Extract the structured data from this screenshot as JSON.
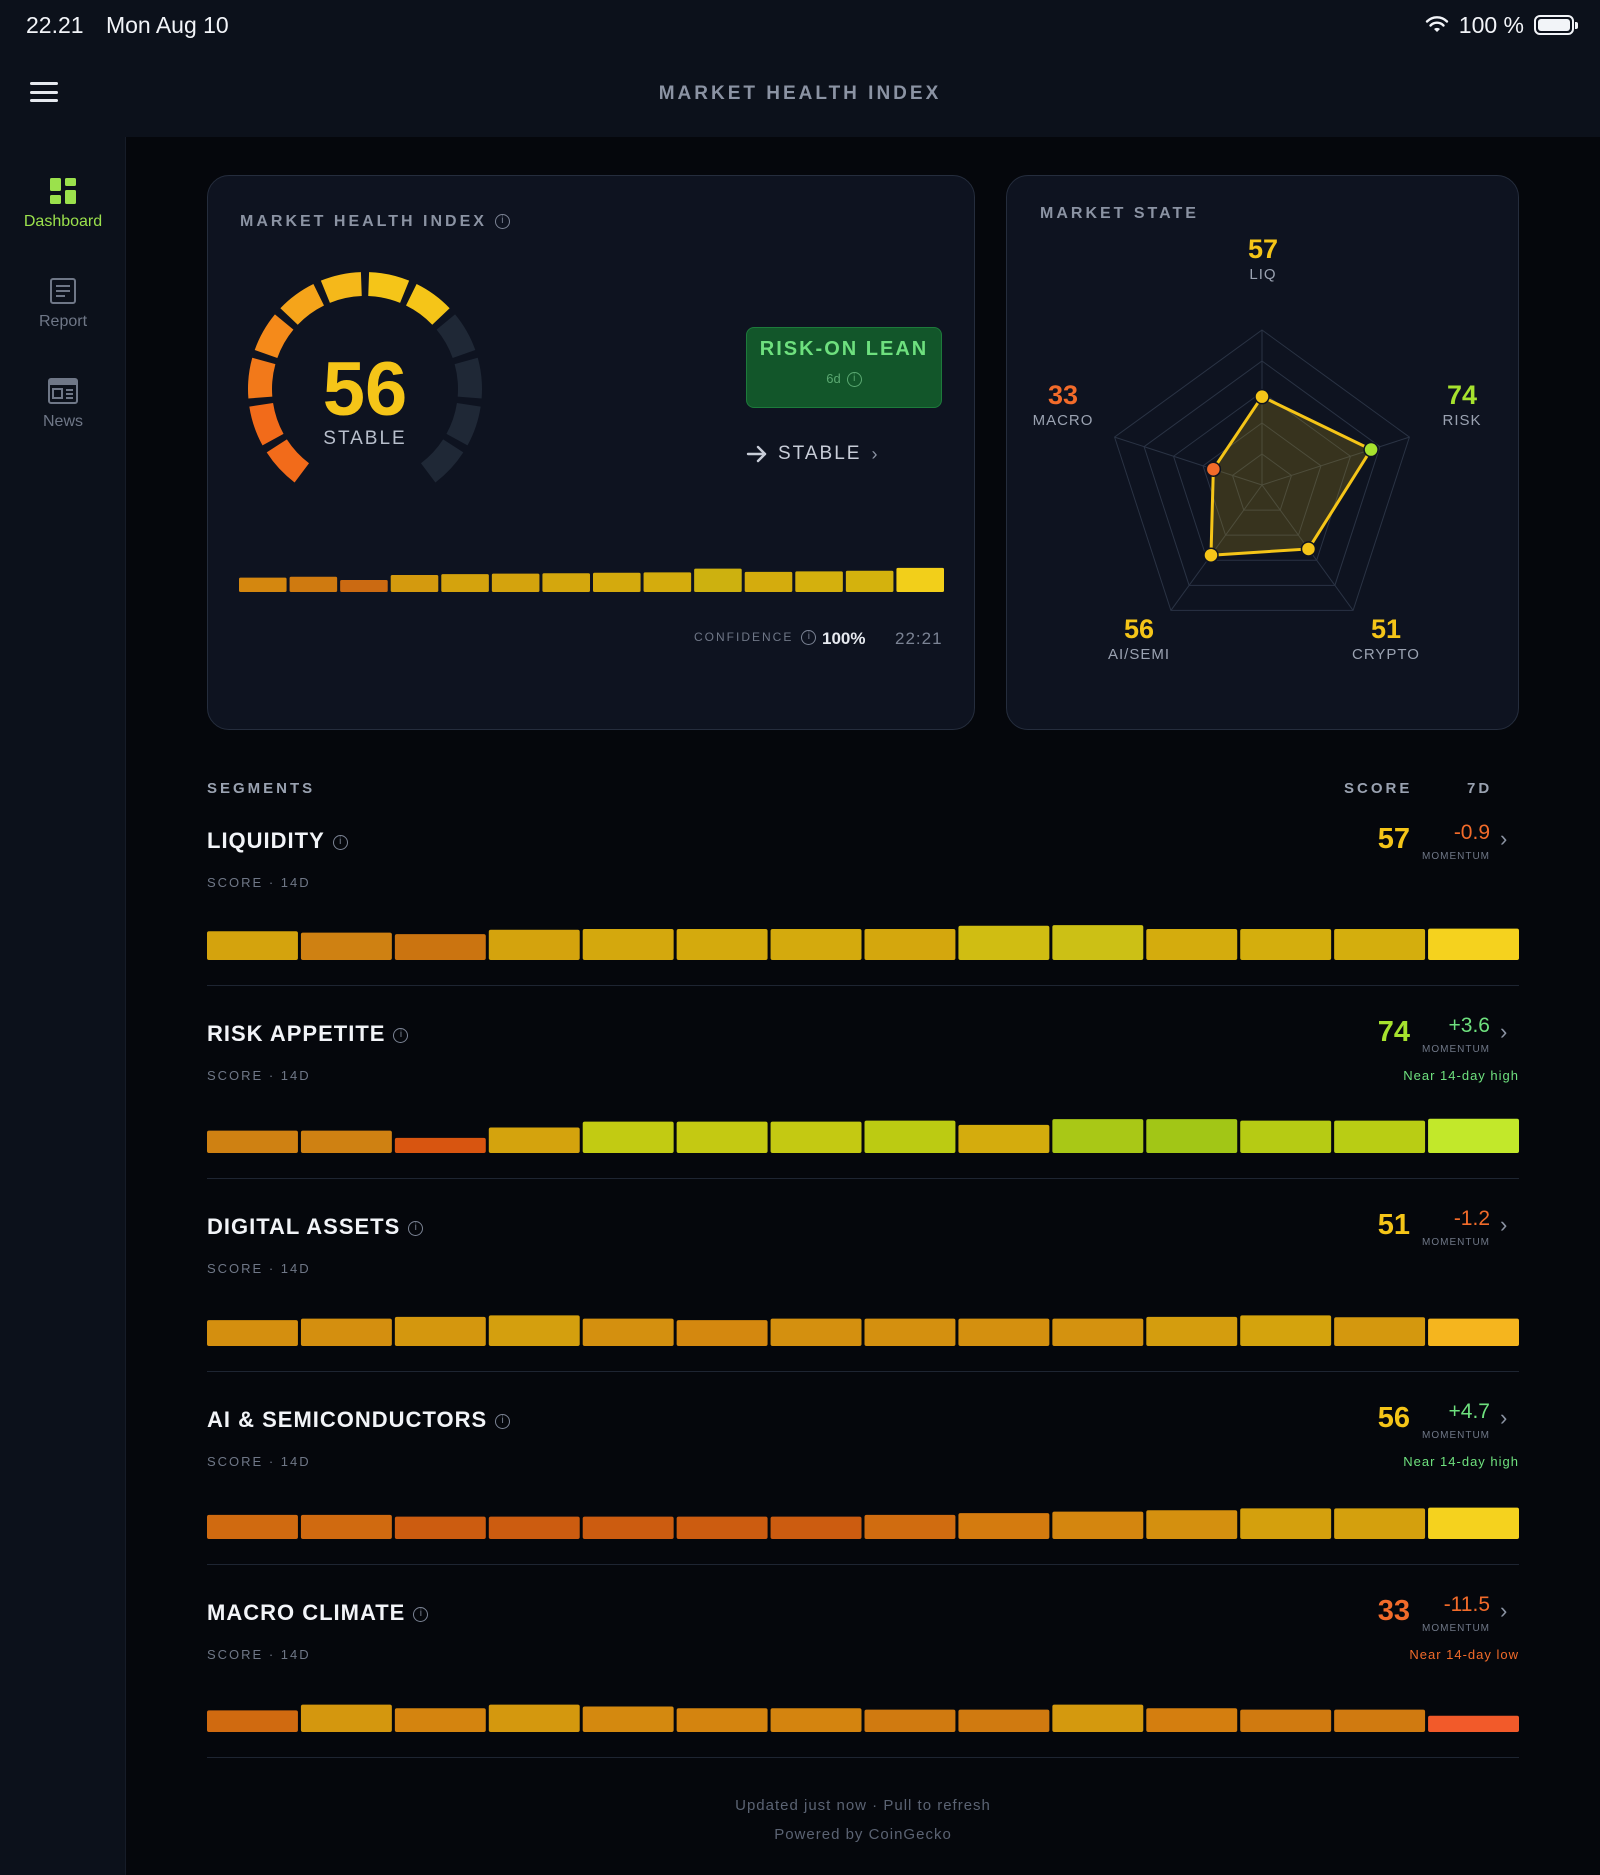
{
  "status": {
    "time": "22.21",
    "date": "Mon Aug 10",
    "battery": "100 %"
  },
  "header": {
    "title": "MARKET HEALTH INDEX"
  },
  "sidebar": {
    "items": [
      {
        "label": "Dashboard",
        "icon": "dashboard-icon",
        "active": true
      },
      {
        "label": "Report",
        "icon": "report-icon",
        "active": false
      },
      {
        "label": "News",
        "icon": "news-icon",
        "active": false
      }
    ]
  },
  "index_card": {
    "label": "MARKET HEALTH INDEX",
    "score": "56",
    "state": "STABLE",
    "gauge_fraction": 0.56,
    "badge": {
      "title": "RISK-ON LEAN",
      "sub": "6d"
    },
    "trend_label": "STABLE",
    "confidence_label": "CONFIDENCE",
    "confidence_value": "100%",
    "time": "22:21",
    "history": [
      0.56,
      0.6,
      0.45,
      0.68,
      0.72,
      0.74,
      0.76,
      0.78,
      0.8,
      0.97,
      0.82,
      0.84,
      0.87,
      1.0
    ],
    "history_colors": [
      "#d4870f",
      "#cf7a10",
      "#cb6a12",
      "#d49a0e",
      "#d4a30d",
      "#d4a30d",
      "#d4a70d",
      "#d4aa0d",
      "#d4ac0d",
      "#cdb10f",
      "#d4ac0d",
      "#d4b00d",
      "#d4b20d",
      "#f2cf1a"
    ]
  },
  "market_state": {
    "label": "MARKET STATE",
    "axes": [
      {
        "key": "LIQ",
        "value": 57,
        "color": "#f5c518"
      },
      {
        "key": "RISK",
        "value": 74,
        "color": "#a6e22e"
      },
      {
        "key": "CRYPTO",
        "value": 51,
        "color": "#f5c518"
      },
      {
        "key": "AI/SEMI",
        "value": 56,
        "color": "#f5c518"
      },
      {
        "key": "MACRO",
        "value": 33,
        "color": "#f26b2a"
      }
    ]
  },
  "segments_header": {
    "title": "SEGMENTS",
    "score": "SCORE",
    "period": "7D"
  },
  "segments": [
    {
      "name": "LIQUIDITY",
      "sub": "SCORE · 14D",
      "score": "57",
      "score_color": "#f5c518",
      "momentum": "-0.9",
      "momentum_color": "#f26b2a",
      "momentum_label": "MOMENTUM",
      "note": "",
      "note_color": "",
      "bars": [
        0.8,
        0.76,
        0.72,
        0.84,
        0.86,
        0.86,
        0.86,
        0.86,
        0.95,
        0.97,
        0.86,
        0.86,
        0.86,
        0.87
      ],
      "colors": [
        "#d4a30d",
        "#cf8112",
        "#cb7410",
        "#d4a30d",
        "#d4a80d",
        "#d4aa0d",
        "#d4aa0d",
        "#d4a70d",
        "#d0bd12",
        "#ccc015",
        "#d4ac0d",
        "#d4ae0d",
        "#d4ae0d",
        "#f5d21e"
      ]
    },
    {
      "name": "RISK APPETITE",
      "sub": "SCORE · 14D",
      "score": "74",
      "score_color": "#a6e22e",
      "momentum": "+3.6",
      "momentum_color": "#6ee07e",
      "momentum_label": "MOMENTUM",
      "note": "Near 14-day high",
      "note_color": "#6ee07e",
      "bars": [
        0.62,
        0.62,
        0.42,
        0.71,
        0.87,
        0.87,
        0.87,
        0.9,
        0.78,
        0.94,
        0.94,
        0.9,
        0.9,
        0.95
      ],
      "colors": [
        "#cf8112",
        "#cf8112",
        "#d85510",
        "#d4a30d",
        "#c2cb12",
        "#c4c912",
        "#c4c912",
        "#bccb12",
        "#d4ac0d",
        "#a9c816",
        "#a2c616",
        "#b6cb14",
        "#b9cd14",
        "#c2e82a"
      ]
    },
    {
      "name": "DIGITAL ASSETS",
      "sub": "SCORE · 14D",
      "score": "51",
      "score_color": "#f5c518",
      "momentum": "-1.2",
      "momentum_color": "#f26b2a",
      "momentum_label": "MOMENTUM",
      "note": "",
      "note_color": "",
      "bars": [
        0.72,
        0.76,
        0.81,
        0.85,
        0.76,
        0.72,
        0.76,
        0.76,
        0.76,
        0.76,
        0.81,
        0.85,
        0.8,
        0.76
      ],
      "colors": [
        "#d48f0f",
        "#d48f0f",
        "#d4970e",
        "#d49f0e",
        "#d4900f",
        "#d4880f",
        "#d4900f",
        "#d4900f",
        "#d4900f",
        "#d4920f",
        "#d49d0e",
        "#d4a30d",
        "#d4980e",
        "#f5b51e"
      ]
    },
    {
      "name": "AI & SEMICONDUCTORS",
      "sub": "SCORE · 14D",
      "score": "56",
      "score_color": "#f5c518",
      "momentum": "+4.7",
      "momentum_color": "#6ee07e",
      "momentum_label": "MOMENTUM",
      "note": "Near 14-day high",
      "note_color": "#6ee07e",
      "bars": [
        0.67,
        0.67,
        0.62,
        0.62,
        0.62,
        0.62,
        0.62,
        0.67,
        0.72,
        0.76,
        0.8,
        0.85,
        0.85,
        0.87
      ],
      "colors": [
        "#d06a10",
        "#d06a10",
        "#cc5c10",
        "#cc5c10",
        "#cc5c10",
        "#cc5c10",
        "#cc5c10",
        "#d06c10",
        "#d47b0f",
        "#d4860f",
        "#d4900f",
        "#d4a00d",
        "#d4a00d",
        "#f5d21e"
      ]
    },
    {
      "name": "MACRO CLIMATE",
      "sub": "SCORE · 14D",
      "score": "33",
      "score_color": "#f26b2a",
      "momentum": "-11.5",
      "momentum_color": "#f26b2a",
      "momentum_label": "MOMENTUM",
      "note": "Near 14-day low",
      "note_color": "#f26b2a",
      "bars": [
        0.6,
        0.76,
        0.66,
        0.76,
        0.71,
        0.66,
        0.66,
        0.62,
        0.62,
        0.76,
        0.66,
        0.62,
        0.62,
        0.45
      ],
      "colors": [
        "#d06a10",
        "#d4970e",
        "#d4840f",
        "#d4980e",
        "#d4890f",
        "#d4840f",
        "#d4840f",
        "#d07a10",
        "#d07a10",
        "#d4990e",
        "#d47e0f",
        "#d07a10",
        "#d07a10",
        "#f25a2a"
      ]
    }
  ],
  "footer": {
    "updated": "Updated just now · Pull to refresh",
    "powered": "Powered by CoinGecko"
  }
}
